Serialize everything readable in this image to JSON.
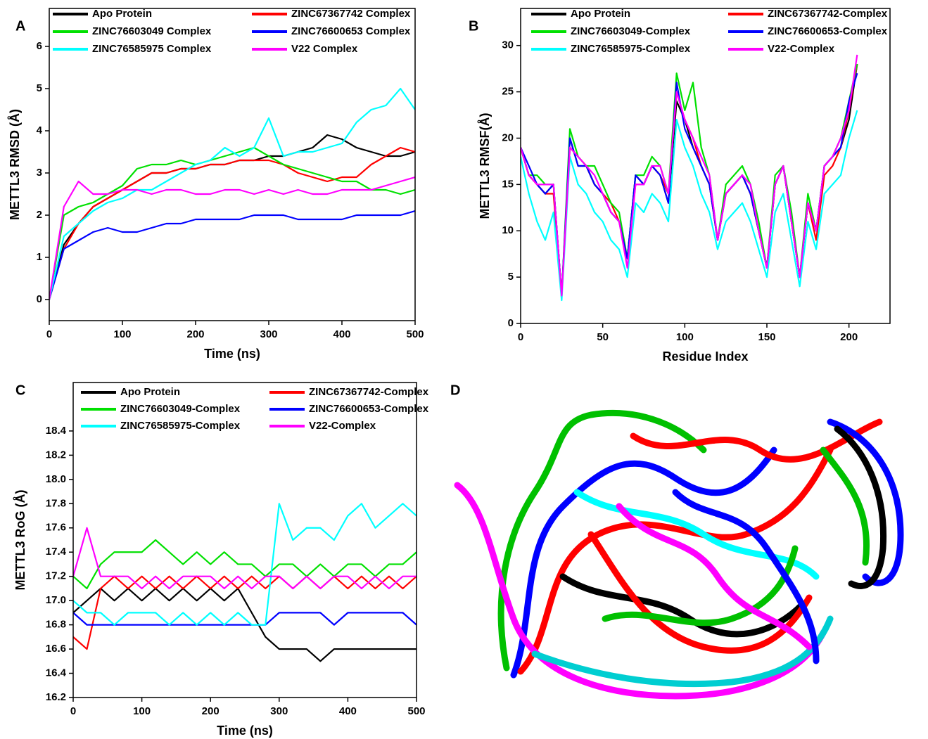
{
  "chart_data": [
    {
      "type": "line",
      "panel_label": "A",
      "x_label": "Time (ns)",
      "y_label": "METTL3 RMSD (Å)",
      "x": [
        0,
        20,
        40,
        60,
        80,
        100,
        120,
        140,
        160,
        180,
        200,
        220,
        240,
        260,
        280,
        300,
        320,
        340,
        360,
        380,
        400,
        420,
        440,
        460,
        480,
        500
      ],
      "xlim": [
        0,
        500
      ],
      "ylim": [
        -0.5,
        6.9
      ],
      "xticks": [
        0,
        100,
        200,
        300,
        400,
        500
      ],
      "yticks": [
        0,
        1,
        2,
        3,
        4,
        5,
        6
      ],
      "series": [
        {
          "name": "Apo Protein",
          "color": "#000000",
          "values": [
            0,
            1.3,
            1.8,
            2.2,
            2.4,
            2.6,
            2.8,
            3.0,
            3.0,
            3.1,
            3.1,
            3.2,
            3.2,
            3.3,
            3.3,
            3.4,
            3.4,
            3.5,
            3.6,
            3.9,
            3.8,
            3.6,
            3.5,
            3.4,
            3.4,
            3.5
          ]
        },
        {
          "name": "ZINC67367742 Complex",
          "color": "#ff0000",
          "values": [
            0,
            1.2,
            1.8,
            2.2,
            2.4,
            2.6,
            2.8,
            3.0,
            3.0,
            3.1,
            3.1,
            3.2,
            3.2,
            3.3,
            3.3,
            3.3,
            3.2,
            3.0,
            2.9,
            2.8,
            2.9,
            2.9,
            3.2,
            3.4,
            3.6,
            3.5
          ]
        },
        {
          "name": "ZINC76603049 Complex",
          "color": "#00e000",
          "values": [
            0,
            2.0,
            2.2,
            2.3,
            2.5,
            2.7,
            3.1,
            3.2,
            3.2,
            3.3,
            3.2,
            3.3,
            3.4,
            3.5,
            3.6,
            3.4,
            3.2,
            3.1,
            3.0,
            2.9,
            2.8,
            2.8,
            2.6,
            2.6,
            2.5,
            2.6
          ]
        },
        {
          "name": "ZINC76600653 Complex",
          "color": "#0000ff",
          "values": [
            0,
            1.2,
            1.4,
            1.6,
            1.7,
            1.6,
            1.6,
            1.7,
            1.8,
            1.8,
            1.9,
            1.9,
            1.9,
            1.9,
            2.0,
            2.0,
            2.0,
            1.9,
            1.9,
            1.9,
            1.9,
            2.0,
            2.0,
            2.0,
            2.0,
            2.1
          ]
        },
        {
          "name": "ZINC76585975 Complex",
          "color": "#00ffff",
          "values": [
            0,
            1.5,
            1.8,
            2.1,
            2.3,
            2.4,
            2.6,
            2.6,
            2.8,
            3.0,
            3.2,
            3.3,
            3.6,
            3.4,
            3.6,
            4.3,
            3.4,
            3.5,
            3.5,
            3.6,
            3.7,
            4.2,
            4.5,
            4.6,
            5.0,
            4.5
          ]
        },
        {
          "name": "V22 Complex",
          "color": "#ff00ff",
          "values": [
            0,
            2.2,
            2.8,
            2.5,
            2.5,
            2.6,
            2.6,
            2.5,
            2.6,
            2.6,
            2.5,
            2.5,
            2.6,
            2.6,
            2.5,
            2.6,
            2.5,
            2.6,
            2.5,
            2.5,
            2.6,
            2.6,
            2.6,
            2.7,
            2.8,
            2.9
          ]
        }
      ]
    },
    {
      "type": "line",
      "panel_label": "B",
      "x_label": "Residue Index",
      "y_label": "METTL3 RMSF(Å)",
      "x": [
        0,
        5,
        10,
        15,
        20,
        25,
        30,
        35,
        40,
        45,
        50,
        55,
        60,
        65,
        70,
        75,
        80,
        85,
        90,
        95,
        100,
        105,
        110,
        115,
        120,
        125,
        130,
        135,
        140,
        145,
        150,
        155,
        160,
        165,
        170,
        175,
        180,
        185,
        190,
        195,
        200,
        205
      ],
      "xlim": [
        0,
        225
      ],
      "ylim": [
        0,
        34
      ],
      "xticks": [
        0,
        50,
        100,
        150,
        200
      ],
      "yticks": [
        0,
        5,
        10,
        15,
        20,
        25,
        30
      ],
      "series": [
        {
          "name": "Apo Protein",
          "color": "#000000",
          "values": [
            19,
            16,
            15,
            14,
            15,
            3,
            20,
            17,
            17,
            15,
            14,
            12,
            11,
            7,
            16,
            15,
            17,
            16,
            13,
            24,
            22,
            19,
            17,
            15,
            9,
            14,
            15,
            16,
            14,
            10,
            6,
            15,
            17,
            11,
            5,
            13,
            10,
            17,
            18,
            19,
            22,
            28
          ]
        },
        {
          "name": "ZINC67367742-Complex",
          "color": "#ff0000",
          "values": [
            19,
            16,
            15,
            14,
            14,
            3,
            19,
            18,
            17,
            15,
            14,
            13,
            11,
            7,
            15,
            15,
            17,
            16,
            14,
            25,
            22,
            20,
            17,
            15,
            9,
            14,
            15,
            16,
            14,
            10,
            6,
            15,
            17,
            11,
            5,
            13,
            9,
            16,
            17,
            19,
            23,
            28
          ]
        },
        {
          "name": "ZINC76603049-Complex",
          "color": "#00e000",
          "values": [
            19,
            16,
            16,
            15,
            15,
            3,
            21,
            18,
            17,
            17,
            15,
            13,
            12,
            7,
            16,
            16,
            18,
            17,
            14,
            27,
            23,
            26,
            19,
            16,
            9,
            15,
            16,
            17,
            15,
            11,
            6,
            16,
            17,
            12,
            5,
            14,
            10,
            17,
            18,
            20,
            24,
            28
          ]
        },
        {
          "name": "ZINC76600653-Complex",
          "color": "#0000ff",
          "values": [
            19,
            17,
            15,
            14,
            15,
            3,
            20,
            17,
            17,
            15,
            14,
            12,
            11,
            7,
            16,
            15,
            17,
            16,
            13,
            26,
            21,
            19,
            17,
            15,
            9,
            14,
            15,
            16,
            14,
            10,
            6,
            15,
            17,
            11,
            5,
            13,
            10,
            17,
            18,
            19,
            24,
            27
          ]
        },
        {
          "name": "ZINC76585975-Complex",
          "color": "#00ffff",
          "values": [
            18,
            14,
            11,
            9,
            12,
            2.5,
            18,
            15,
            14,
            12,
            11,
            9,
            8,
            5,
            13,
            12,
            14,
            13,
            11,
            22,
            19,
            17,
            14,
            12,
            8,
            11,
            12,
            13,
            11,
            8,
            5,
            12,
            14,
            9,
            4,
            11,
            8,
            14,
            15,
            16,
            20,
            23
          ]
        },
        {
          "name": "V22-Complex",
          "color": "#ff00ff",
          "values": [
            19,
            16,
            15,
            15,
            15,
            3,
            19,
            18,
            17,
            16,
            14,
            12,
            11,
            6,
            15,
            15,
            17,
            17,
            14,
            25,
            22,
            20,
            18,
            16,
            9,
            14,
            15,
            16,
            15,
            10,
            6,
            15,
            17,
            11,
            5,
            13,
            10,
            17,
            18,
            20,
            23,
            29
          ]
        }
      ]
    },
    {
      "type": "line",
      "panel_label": "C",
      "x_label": "Time (ns)",
      "y_label": "METTL3 RoG (Å)",
      "x": [
        0,
        20,
        40,
        60,
        80,
        100,
        120,
        140,
        160,
        180,
        200,
        220,
        240,
        260,
        280,
        300,
        320,
        340,
        360,
        380,
        400,
        420,
        440,
        460,
        480,
        500
      ],
      "xlim": [
        0,
        500
      ],
      "ylim": [
        16.2,
        18.8
      ],
      "xticks": [
        0,
        100,
        200,
        300,
        400,
        500
      ],
      "yticks": [
        16.2,
        16.4,
        16.6,
        16.8,
        {
          "value": 17,
          "label": "17.0"
        },
        17.2,
        17.4,
        17.6,
        17.8,
        {
          "value": 18,
          "label": "18.0"
        },
        18.2,
        18.4
      ],
      "series": [
        {
          "name": "Apo Protein",
          "color": "#000000",
          "values": [
            16.9,
            17.0,
            17.1,
            17.0,
            17.1,
            17.0,
            17.1,
            17.0,
            17.1,
            17.0,
            17.1,
            17.0,
            17.1,
            16.9,
            16.7,
            16.6,
            16.6,
            16.6,
            16.5,
            16.6,
            16.6,
            16.6,
            16.6,
            16.6,
            16.6,
            16.6
          ]
        },
        {
          "name": "ZINC67367742-Complex",
          "color": "#ff0000",
          "values": [
            16.7,
            16.6,
            17.1,
            17.2,
            17.1,
            17.2,
            17.1,
            17.2,
            17.1,
            17.2,
            17.1,
            17.2,
            17.1,
            17.2,
            17.1,
            17.2,
            17.1,
            17.2,
            17.1,
            17.2,
            17.1,
            17.2,
            17.1,
            17.2,
            17.1,
            17.2
          ]
        },
        {
          "name": "ZINC76603049-Complex",
          "color": "#00e000",
          "values": [
            17.2,
            17.1,
            17.3,
            17.4,
            17.4,
            17.4,
            17.5,
            17.4,
            17.3,
            17.4,
            17.3,
            17.4,
            17.3,
            17.3,
            17.2,
            17.3,
            17.3,
            17.2,
            17.3,
            17.2,
            17.3,
            17.3,
            17.2,
            17.3,
            17.3,
            17.4
          ]
        },
        {
          "name": "ZINC76600653-Complex",
          "color": "#0000ff",
          "values": [
            16.9,
            16.8,
            16.8,
            16.8,
            16.8,
            16.8,
            16.8,
            16.8,
            16.8,
            16.8,
            16.8,
            16.8,
            16.8,
            16.8,
            16.8,
            16.9,
            16.9,
            16.9,
            16.9,
            16.8,
            16.9,
            16.9,
            16.9,
            16.9,
            16.9,
            16.8
          ]
        },
        {
          "name": "ZINC76585975-Complex",
          "color": "#00ffff",
          "values": [
            17.0,
            16.9,
            16.9,
            16.8,
            16.9,
            16.9,
            16.9,
            16.8,
            16.9,
            16.8,
            16.9,
            16.8,
            16.9,
            16.8,
            16.8,
            17.8,
            17.5,
            17.6,
            17.6,
            17.5,
            17.7,
            17.8,
            17.6,
            17.7,
            17.8,
            17.7
          ]
        },
        {
          "name": "V22-Complex",
          "color": "#ff00ff",
          "values": [
            17.2,
            17.6,
            17.2,
            17.2,
            17.2,
            17.1,
            17.2,
            17.1,
            17.2,
            17.2,
            17.2,
            17.1,
            17.2,
            17.1,
            17.2,
            17.2,
            17.1,
            17.2,
            17.1,
            17.2,
            17.2,
            17.1,
            17.2,
            17.1,
            17.2,
            17.2
          ]
        }
      ]
    }
  ],
  "image_panel": {
    "label": "D"
  }
}
